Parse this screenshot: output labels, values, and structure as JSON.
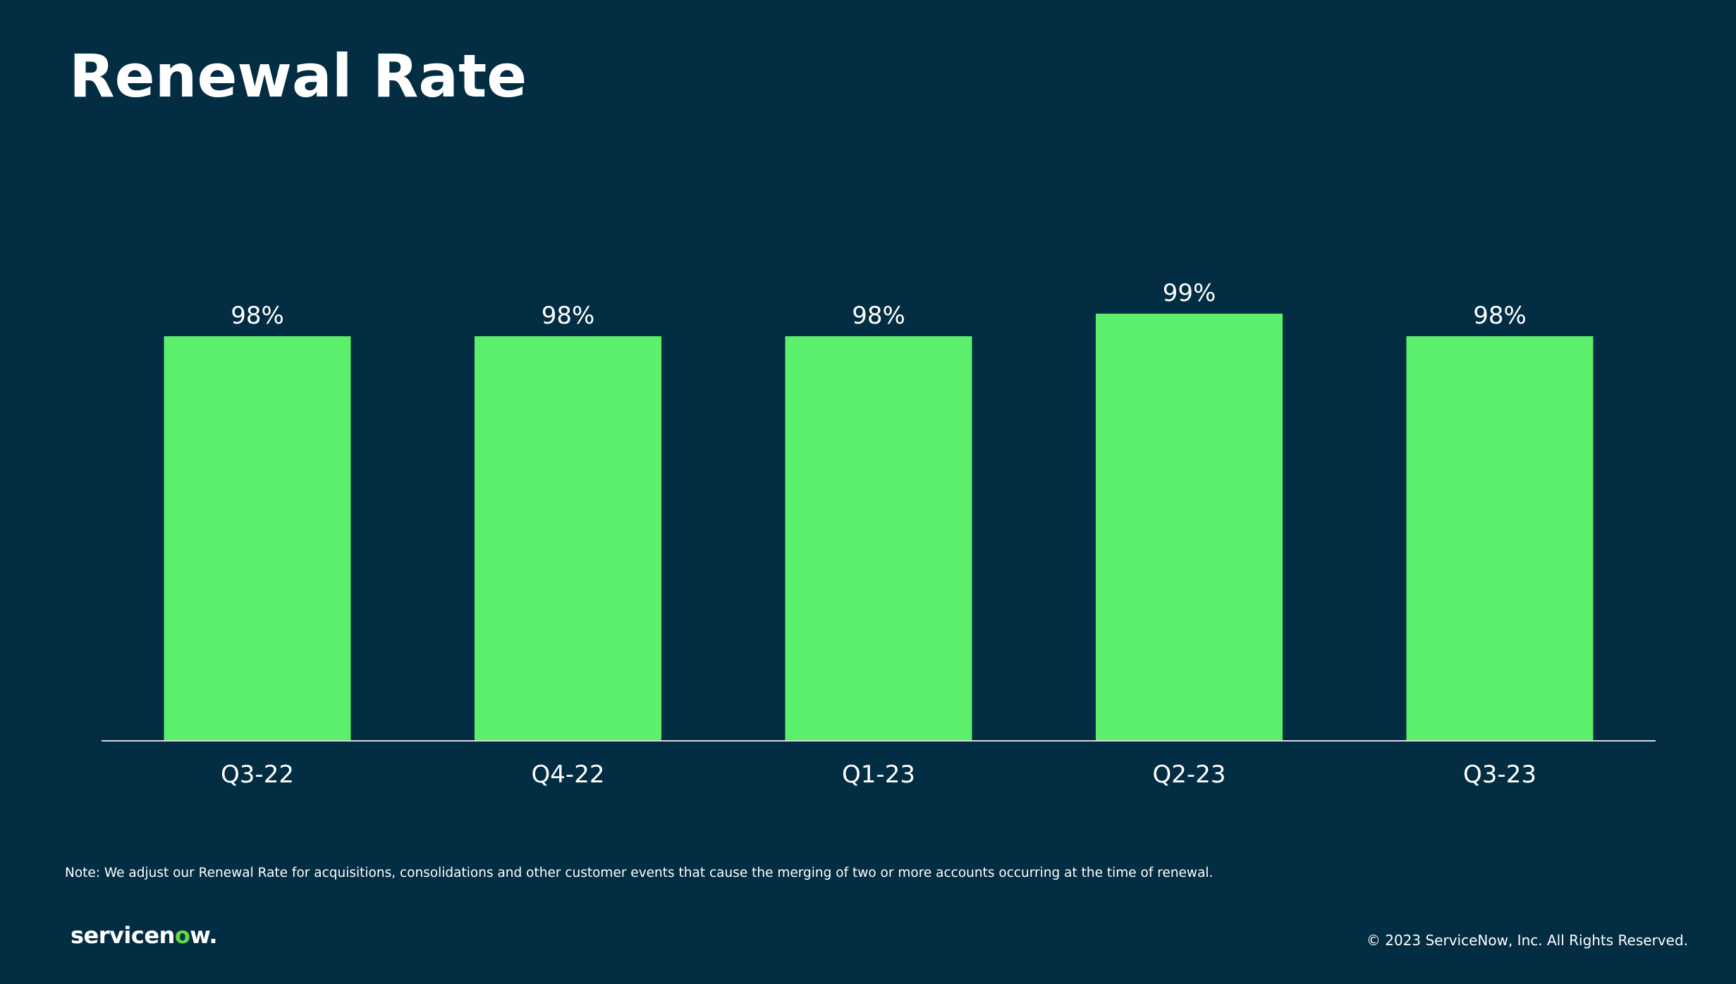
{
  "slide": {
    "title": "Renewal Rate",
    "note": "Note: We adjust our Renewal Rate for acquisitions, consolidations and other customer events that cause the merging of two or more accounts occurring at the time of renewal.",
    "logo": {
      "text_before": "servicen",
      "text_accent": "o",
      "text_after": "w."
    },
    "copyright": "© 2023 ServiceNow, Inc. All Rights Reserved."
  },
  "colors": {
    "background": "#032D42",
    "bar": "#5BEF6B",
    "text": "#FFFFFF",
    "logo_accent": "#62D84E"
  },
  "chart_data": {
    "type": "bar",
    "categories": [
      "Q3-22",
      "Q4-22",
      "Q1-23",
      "Q2-23",
      "Q3-23"
    ],
    "values": [
      98,
      98,
      98,
      99,
      98
    ],
    "data_labels": [
      "98%",
      "98%",
      "98%",
      "99%",
      "98%"
    ],
    "unit": "%",
    "title": "Renewal Rate",
    "xlabel": "",
    "ylabel": "",
    "ylim": [
      80,
      100
    ],
    "grid": false,
    "legend": "none"
  }
}
